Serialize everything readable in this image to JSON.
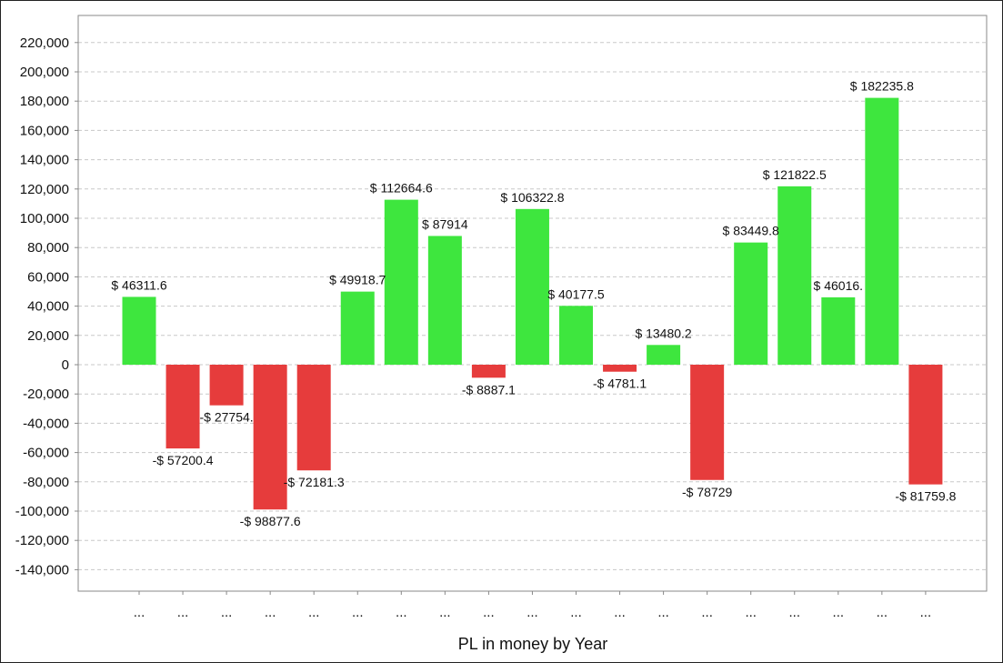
{
  "chart_data": {
    "type": "bar",
    "xlabel": "PL in money by Year",
    "ylabel": "",
    "ylim": [
      -150000,
      235000
    ],
    "yticks": [
      220000,
      200000,
      180000,
      160000,
      140000,
      120000,
      100000,
      80000,
      60000,
      40000,
      20000,
      0,
      -20000,
      -40000,
      -60000,
      -80000,
      -100000,
      -120000,
      -140000
    ],
    "ytick_labels": [
      "220,000",
      "200,000",
      "180,000",
      "160,000",
      "140,000",
      "120,000",
      "100,000",
      "80,000",
      "60,000",
      "40,000",
      "20,000",
      "0",
      "-20,000",
      "-40,000",
      "-60,000",
      "-80,000",
      "-100,000",
      "-120,000",
      "-140,000"
    ],
    "grid": true,
    "categories": [
      "...",
      "...",
      "...",
      "...",
      "...",
      "...",
      "...",
      "...",
      "...",
      "...",
      "...",
      "...",
      "...",
      "...",
      "...",
      "...",
      "...",
      "...",
      "..."
    ],
    "values": [
      46311.6,
      -57200.4,
      -27754,
      -98877.6,
      -72181.3,
      49918.7,
      112664.6,
      87914,
      -8887.1,
      106322.8,
      40177.5,
      -4781.1,
      13480.2,
      -78729,
      83449.8,
      121822.5,
      46016.1,
      182235.8,
      -81759.8
    ],
    "data_labels": [
      "$ 46311.6",
      "-$ 57200.4",
      "-$ 27754.",
      "-$ 98877.6",
      "-$ 72181.3",
      "$ 49918.7",
      "$ 112664.6",
      "$ 87914",
      "-$ 8887.1",
      "$ 106322.8",
      "$ 40177.5",
      "-$ 4781.1",
      "$ 13480.2",
      "-$ 78729",
      "$ 83449.8",
      "$ 121822.5",
      "$ 46016.",
      "$ 182235.8",
      "-$ 81759.8"
    ],
    "colors": {
      "positive": "#3ee63e",
      "negative": "#e63c3c",
      "grid": "#c8c8c8",
      "axis": "#888888"
    }
  }
}
